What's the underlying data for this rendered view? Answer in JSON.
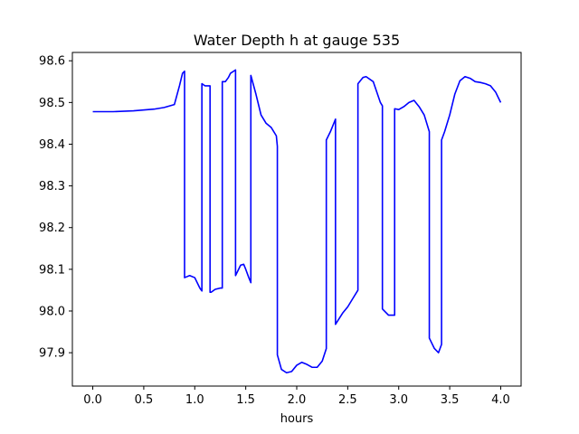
{
  "chart_data": {
    "type": "line",
    "title": "Water Depth h at gauge 535",
    "xlabel": "hours",
    "ylabel": "",
    "xlim": [
      -0.2,
      4.2
    ],
    "ylim": [
      97.82,
      98.62
    ],
    "xticks": [
      0.0,
      0.5,
      1.0,
      1.5,
      2.0,
      2.5,
      3.0,
      3.5,
      4.0
    ],
    "xtick_labels": [
      "0.0",
      "0.5",
      "1.0",
      "1.5",
      "2.0",
      "2.5",
      "3.0",
      "3.5",
      "4.0"
    ],
    "yticks": [
      97.9,
      98.0,
      98.1,
      98.2,
      98.3,
      98.4,
      98.5,
      98.6
    ],
    "ytick_labels": [
      "97.9",
      "98.0",
      "98.1",
      "98.2",
      "98.3",
      "98.4",
      "98.5",
      "98.6"
    ],
    "grid": false,
    "series": [
      {
        "color": "#0000ff",
        "x": [
          0.0,
          0.2,
          0.4,
          0.6,
          0.7,
          0.8,
          0.85,
          0.88,
          0.9,
          0.9,
          0.95,
          1.0,
          1.05,
          1.07,
          1.07,
          1.1,
          1.15,
          1.15,
          1.16,
          1.2,
          1.25,
          1.27,
          1.27,
          1.3,
          1.33,
          1.35,
          1.4,
          1.4,
          1.45,
          1.48,
          1.5,
          1.53,
          1.55,
          1.55,
          1.6,
          1.65,
          1.7,
          1.75,
          1.8,
          1.81,
          1.81,
          1.85,
          1.9,
          1.95,
          2.0,
          2.05,
          2.1,
          2.15,
          2.2,
          2.25,
          2.29,
          2.29,
          2.33,
          2.38,
          2.38,
          2.45,
          2.5,
          2.55,
          2.6,
          2.6,
          2.65,
          2.68,
          2.75,
          2.82,
          2.84,
          2.84,
          2.9,
          2.95,
          2.96,
          2.96,
          3.0,
          3.05,
          3.1,
          3.15,
          3.2,
          3.25,
          3.3,
          3.3,
          3.35,
          3.39,
          3.42,
          3.42,
          3.45,
          3.5,
          3.55,
          3.6,
          3.65,
          3.7,
          3.75,
          3.8,
          3.85,
          3.9,
          3.95,
          4.0
        ],
        "y": [
          98.478,
          98.478,
          98.48,
          98.484,
          98.488,
          98.495,
          98.54,
          98.57,
          98.575,
          98.08,
          98.085,
          98.08,
          98.055,
          98.048,
          98.545,
          98.54,
          98.54,
          98.045,
          98.045,
          98.052,
          98.055,
          98.055,
          98.55,
          98.55,
          98.56,
          98.57,
          98.578,
          98.085,
          98.11,
          98.112,
          98.1,
          98.08,
          98.068,
          98.565,
          98.52,
          98.47,
          98.45,
          98.44,
          98.42,
          98.395,
          97.895,
          97.86,
          97.852,
          97.855,
          97.87,
          97.877,
          97.872,
          97.865,
          97.865,
          97.88,
          97.91,
          98.41,
          98.43,
          98.46,
          97.968,
          97.995,
          98.01,
          98.03,
          98.05,
          98.545,
          98.56,
          98.562,
          98.55,
          98.5,
          98.492,
          98.005,
          97.99,
          97.99,
          97.99,
          98.485,
          98.483,
          98.49,
          98.5,
          98.505,
          98.49,
          98.47,
          98.43,
          97.935,
          97.91,
          97.9,
          97.92,
          98.41,
          98.43,
          98.47,
          98.52,
          98.552,
          98.562,
          98.558,
          98.55,
          98.548,
          98.545,
          98.54,
          98.525,
          98.5
        ]
      }
    ]
  }
}
